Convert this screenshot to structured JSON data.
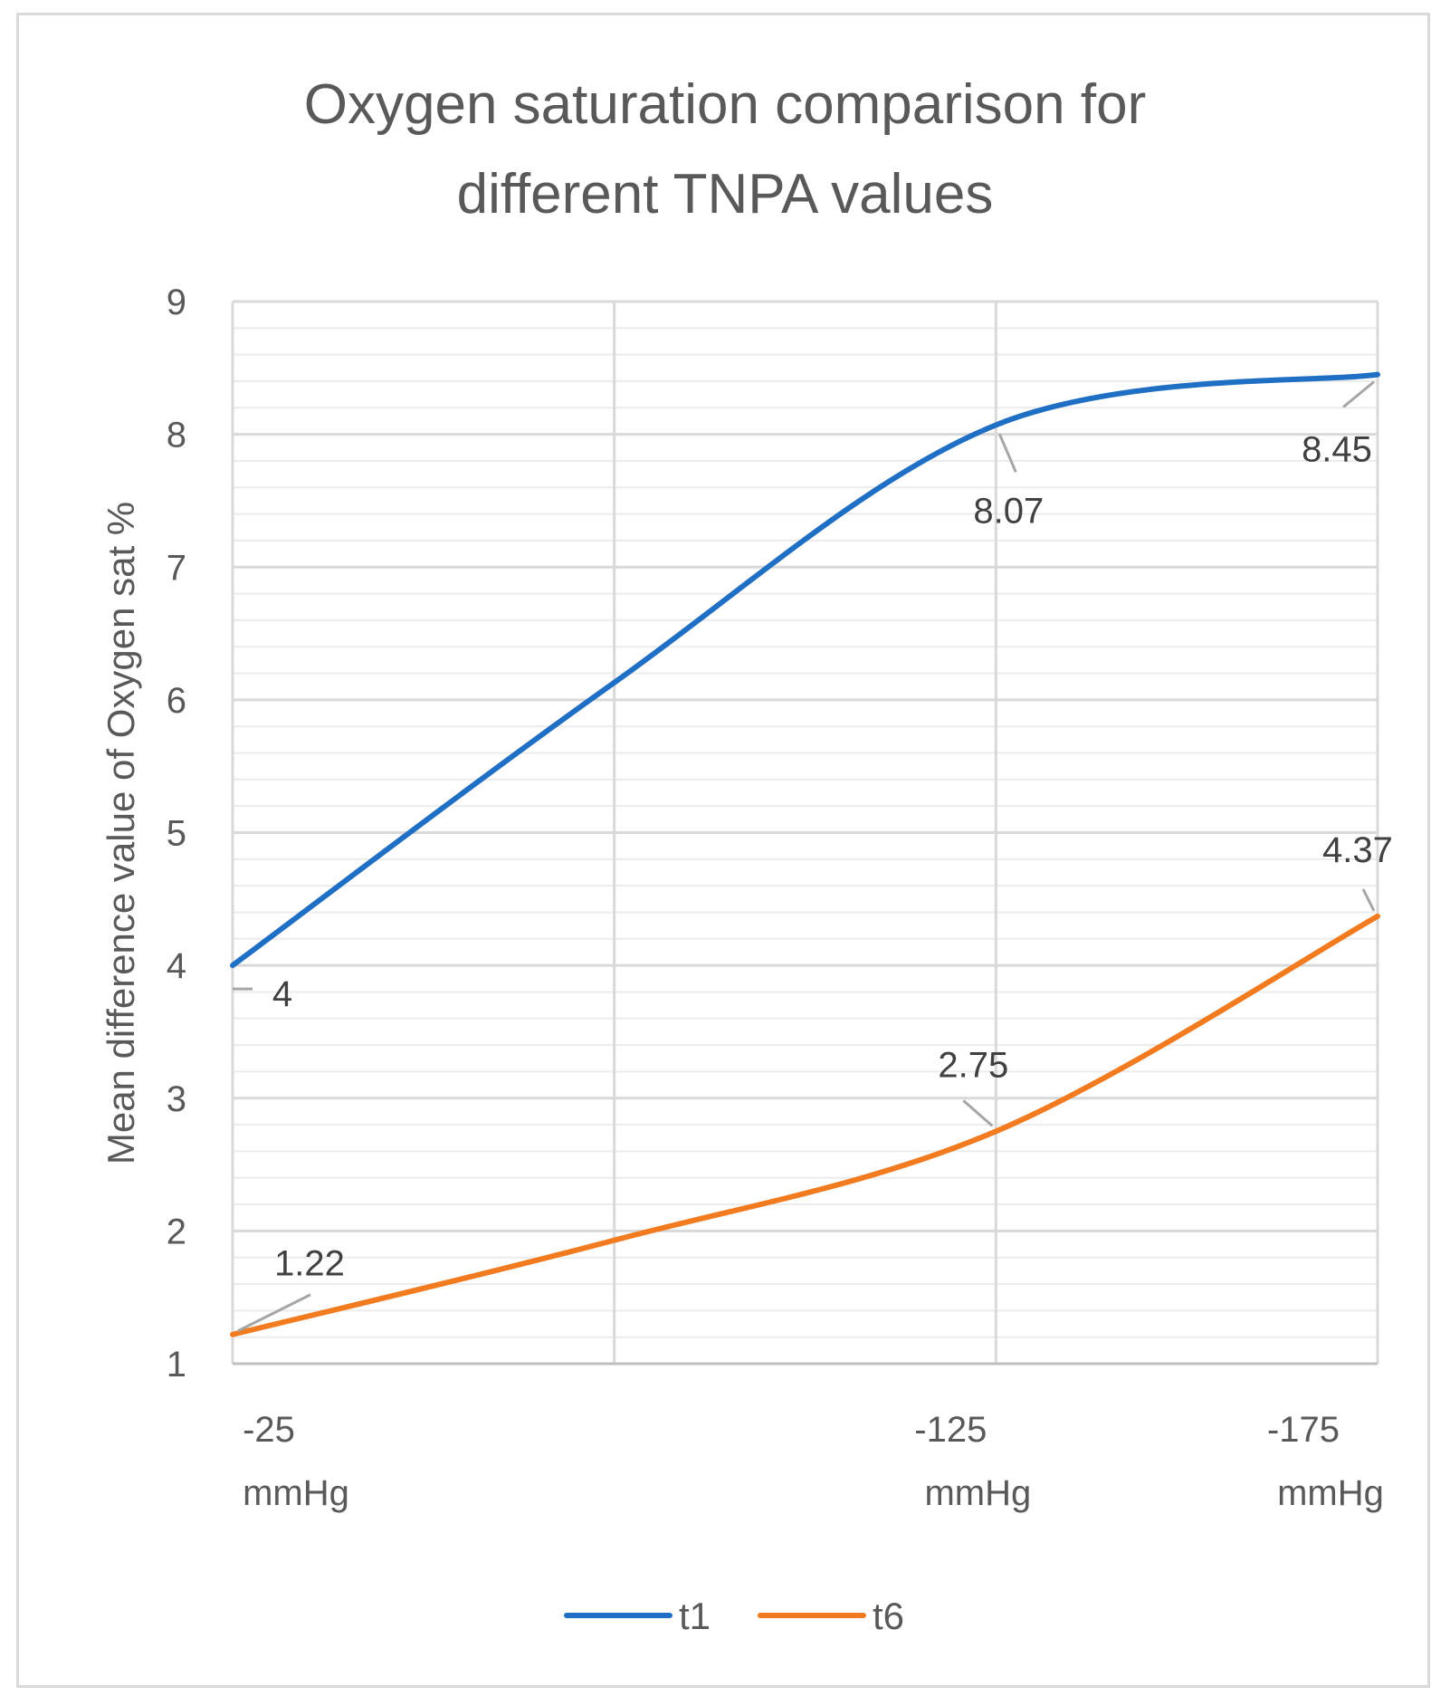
{
  "chart_data": {
    "type": "line",
    "title_lines": [
      "Oxygen saturation comparison for",
      "different TNPA values"
    ],
    "ylabel": "Mean difference value of Oxygen sat %",
    "xlabel": "",
    "categories": [
      {
        "line1": "-25",
        "line2": "mmHg"
      },
      {
        "line1": "",
        "line2": ""
      },
      {
        "line1": "-125",
        "line2": "mmHg"
      },
      {
        "line1": "-175",
        "line2": "mmHg"
      }
    ],
    "ylim": [
      1,
      9
    ],
    "yticks": [
      1,
      2,
      3,
      4,
      5,
      6,
      7,
      8,
      9
    ],
    "minor_gridlines": true,
    "legend_position": "bottom",
    "series": [
      {
        "name": "t1",
        "color": "#1f6fc5",
        "values": [
          4,
          6.13,
          8.07,
          8.45
        ],
        "labels": [
          "4",
          "",
          "8.07",
          "8.45"
        ]
      },
      {
        "name": "t6",
        "color": "#f27b1f",
        "values": [
          1.22,
          1.93,
          2.75,
          4.37
        ],
        "labels": [
          "1.22",
          "",
          "2.75",
          "4.37"
        ]
      }
    ]
  }
}
